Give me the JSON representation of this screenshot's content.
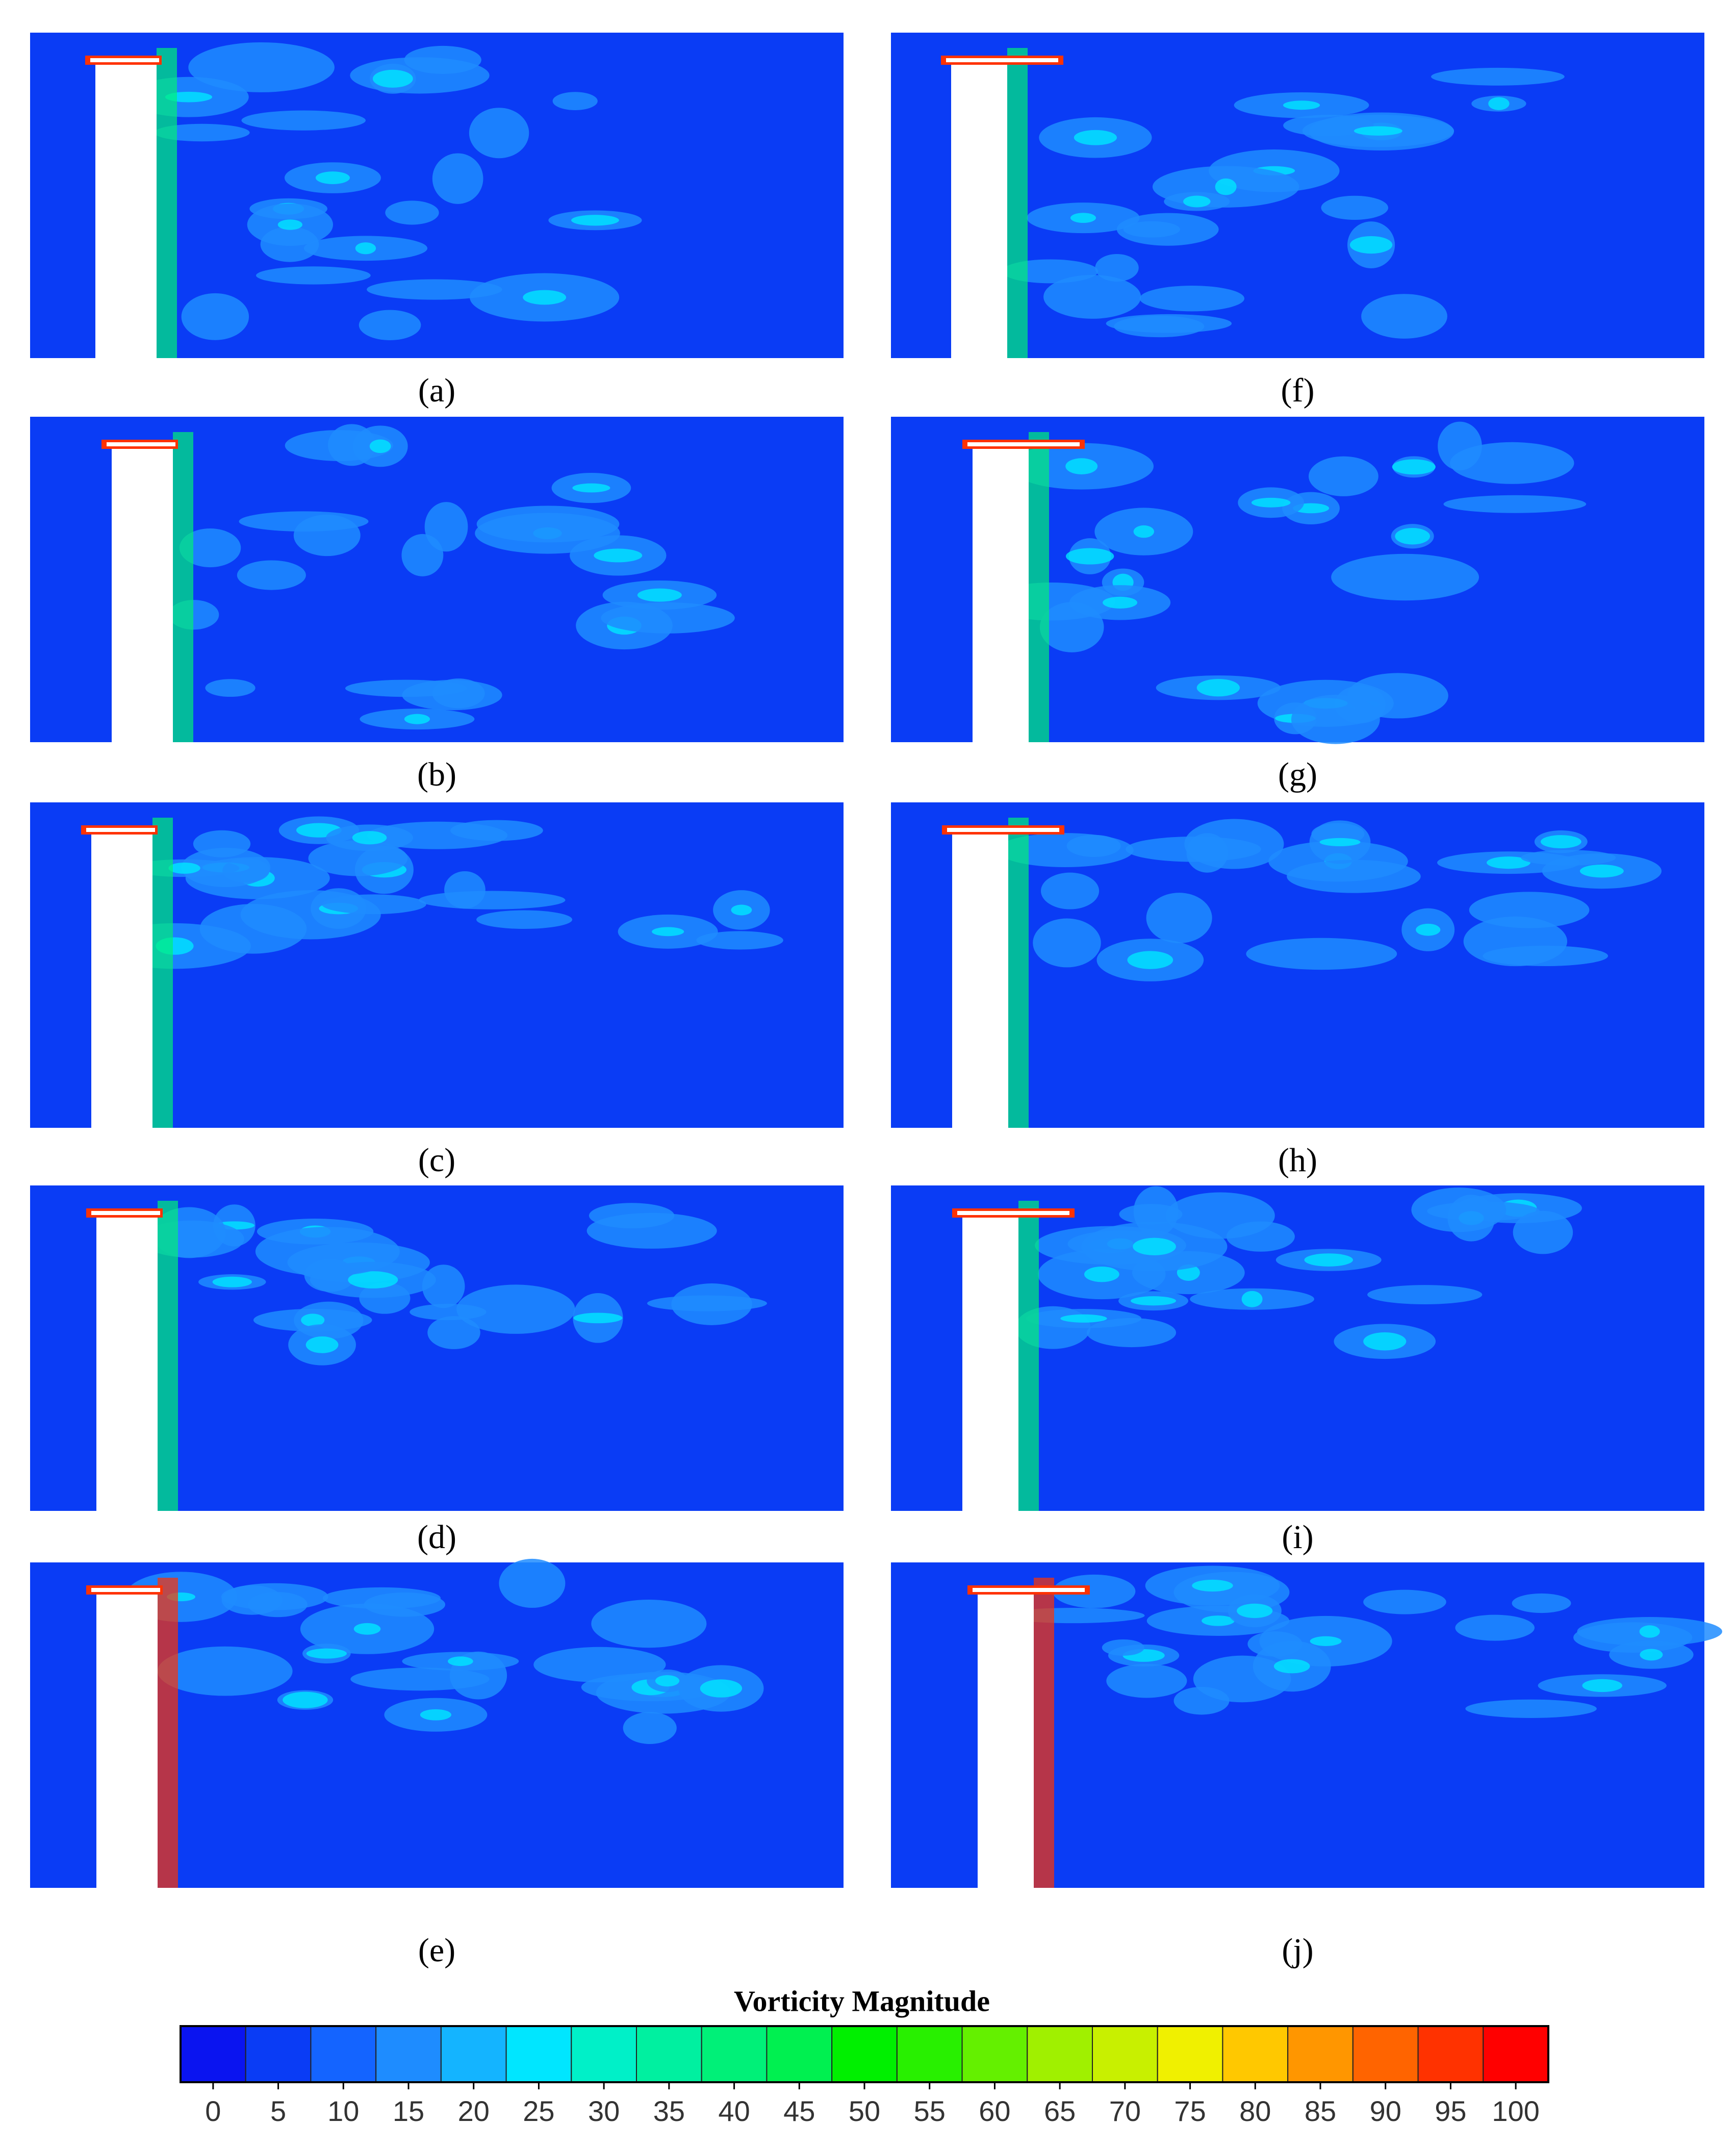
{
  "panels": [
    {
      "label": "(a)"
    },
    {
      "label": "(b)"
    },
    {
      "label": "(c)"
    },
    {
      "label": "(d)"
    },
    {
      "label": "(e)"
    },
    {
      "label": "(f)"
    },
    {
      "label": "(g)"
    },
    {
      "label": "(h)"
    },
    {
      "label": "(i)"
    },
    {
      "label": "(j)"
    }
  ],
  "colorbar": {
    "title": "Vorticity Magnitude",
    "ticks": [
      0,
      5,
      10,
      15,
      20,
      25,
      30,
      35,
      40,
      45,
      50,
      55,
      60,
      65,
      70,
      75,
      80,
      85,
      90,
      95,
      100
    ],
    "colors": [
      "#0a14f0",
      "#0a3cf5",
      "#1464ff",
      "#1e8cff",
      "#14b4ff",
      "#00e6ff",
      "#00f0c8",
      "#00f0a0",
      "#00f078",
      "#00f050",
      "#00f000",
      "#28f000",
      "#64f000",
      "#a0f000",
      "#c8f000",
      "#f0f000",
      "#ffc800",
      "#ff9600",
      "#ff6400",
      "#ff3200",
      "#ff0000"
    ]
  }
}
